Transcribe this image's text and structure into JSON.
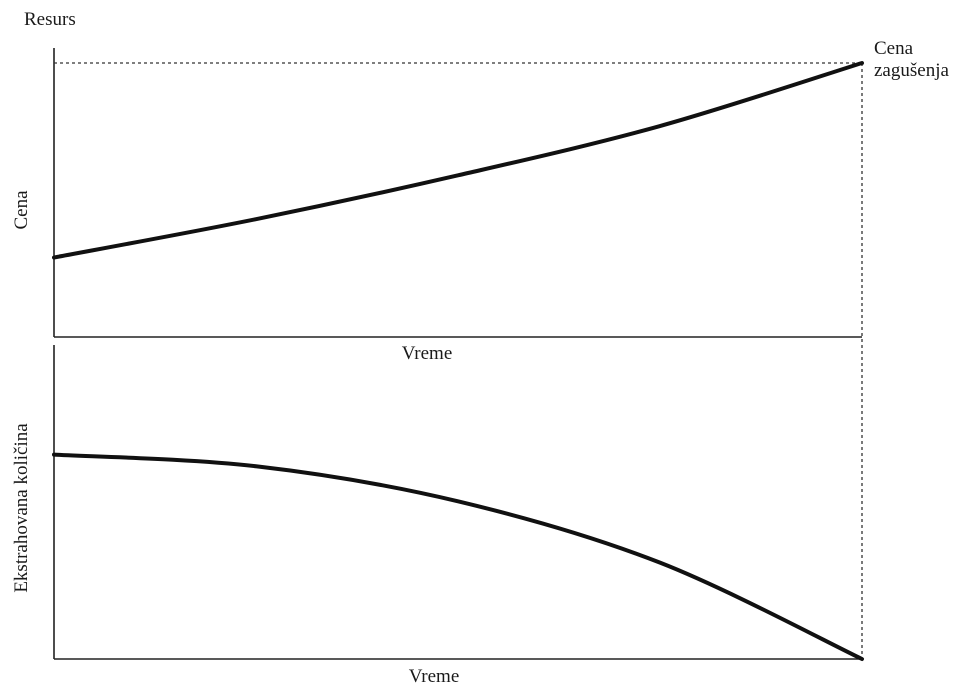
{
  "chart_data": [
    {
      "type": "line",
      "title": "Resurs",
      "xlabel": "Vreme",
      "ylabel": "Cena",
      "annotation": [
        "Cena",
        "zagušenja"
      ],
      "x": [
        0,
        0.25,
        0.5,
        0.75,
        1.0
      ],
      "series": [
        {
          "values": [
            0.29,
            0.43,
            0.59,
            0.77,
            1.0
          ]
        }
      ],
      "xlim": [
        0,
        1
      ],
      "ylim": [
        0,
        1.02
      ],
      "grid": false,
      "reference_line": {
        "y": 1.0,
        "style": "dashed"
      }
    },
    {
      "type": "line",
      "title": "",
      "xlabel": "Vreme",
      "ylabel": "Ekstrahovana količina",
      "x": [
        0,
        0.25,
        0.5,
        0.75,
        1.0
      ],
      "series": [
        {
          "values": [
            0.7,
            0.66,
            0.54,
            0.33,
            0.0
          ]
        }
      ],
      "xlim": [
        0,
        1
      ],
      "ylim": [
        0,
        1.02
      ],
      "grid": false
    }
  ]
}
